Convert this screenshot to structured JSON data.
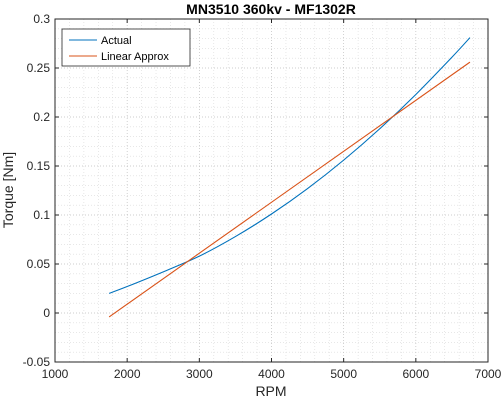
{
  "chart_data": {
    "type": "line",
    "title": "MN3510 360kv - MF1302R",
    "xlabel": "RPM",
    "ylabel": "Torque [Nm]",
    "xlim": [
      1000,
      7000
    ],
    "ylim": [
      -0.05,
      0.3
    ],
    "xticks": [
      1000,
      2000,
      3000,
      4000,
      5000,
      6000,
      7000
    ],
    "xtick_labels": [
      "1000",
      "2000",
      "3000",
      "4000",
      "5000",
      "6000",
      "7000"
    ],
    "yticks": [
      -0.05,
      0,
      0.05,
      0.1,
      0.15,
      0.2,
      0.25,
      0.3
    ],
    "ytick_labels": [
      "-0.05",
      "0",
      "0.05",
      "0.1",
      "0.15",
      "0.2",
      "0.25",
      "0.3"
    ],
    "grid": "major and minor, dotted",
    "legend_position": "top-left",
    "series": [
      {
        "name": "Actual",
        "color": "#0072BD",
        "x": [
          1750,
          2000,
          2500,
          3000,
          3500,
          4000,
          4500,
          5000,
          5500,
          6000,
          6500,
          6750
        ],
        "y": [
          0.02,
          0.027,
          0.042,
          0.058,
          0.078,
          0.101,
          0.127,
          0.156,
          0.188,
          0.223,
          0.261,
          0.281
        ]
      },
      {
        "name": "Linear Approx",
        "color": "#D95319",
        "x": [
          1750,
          6750
        ],
        "y": [
          -0.004,
          0.256
        ]
      }
    ]
  }
}
